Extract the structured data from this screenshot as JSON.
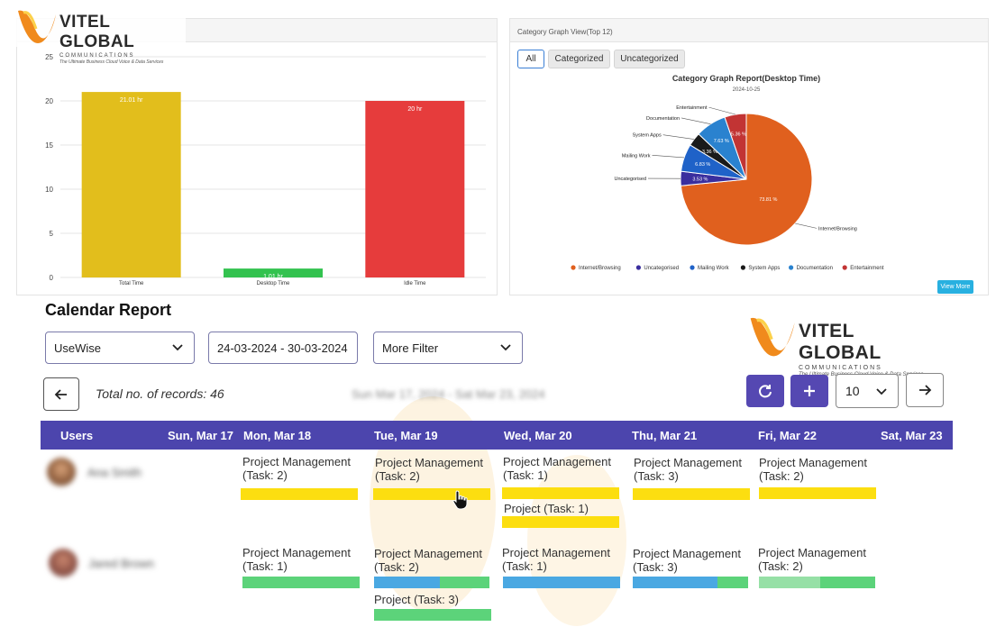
{
  "logo_top": {
    "word": "VITEL GLOBAL",
    "sub": "COMMUNICATIONS",
    "tagline": "The Ultimate Business Cloud Voice & Data Services"
  },
  "logo_right": {
    "word": "VITEL GLOBAL",
    "sub": "COMMUNICATIONS",
    "tagline": "The Ultimate Business Cloud Voice & Data Services"
  },
  "pie_panel": {
    "header": "Category Graph View(Top 12)",
    "tabs": [
      "All",
      "Categorized",
      "Uncategorized"
    ],
    "view_more": "View More"
  },
  "chart_data": [
    {
      "type": "bar",
      "categories": [
        "Total Time",
        "Desktop Time",
        "Idle Time"
      ],
      "values": [
        21.01,
        1.01,
        20
      ],
      "data_labels": [
        "21.01 hr",
        "1.01 hr",
        "20 hr"
      ],
      "colors": [
        "#e2be1c",
        "#33c24f",
        "#e63c3c"
      ],
      "yticks": [
        "0",
        "5",
        "10",
        "15",
        "20",
        "25"
      ],
      "ylim": [
        0,
        25
      ],
      "grid": true
    },
    {
      "type": "pie",
      "title": "Category Graph Report(Desktop Time)",
      "subtitle": "2024-10-25",
      "slices": [
        {
          "label": "Internet/Browsing",
          "value": 73.81,
          "pct_label": "73.81 %",
          "color": "#e0601e"
        },
        {
          "label": "Uncategorised",
          "value": 3.53,
          "pct_label": "3.53 %",
          "color": "#3a2e9e"
        },
        {
          "label": "Mailing Work",
          "value": 6.83,
          "pct_label": "6.83 %",
          "color": "#1f62c8"
        },
        {
          "label": "System Apps",
          "value": 3.36,
          "pct_label": "3.36 %",
          "color": "#1a1a1a"
        },
        {
          "label": "Documentation",
          "value": 7.63,
          "pct_label": "7.63 %",
          "color": "#2a82cf"
        },
        {
          "label": "Entertainment",
          "value": 5.36,
          "pct_label": "5.36 %",
          "color": "#c23434"
        }
      ],
      "legend_position": "bottom"
    }
  ],
  "report": {
    "title": "Calendar Report",
    "filter_type": "UseWise",
    "date_range": "24-03-2024 - 30-03-2024",
    "more_filter": "More Filter",
    "records_text": "Total no. of records: 46",
    "week_range": "Sun Mar 17, 2024 - Sat Mar 23, 2024",
    "page_size": "10"
  },
  "calendar": {
    "headers": [
      "Users",
      "Sun, Mar 17",
      "Mon, Mar 18",
      "Tue, Mar 19",
      "Wed, Mar 20",
      "Thu, Mar 21",
      "Fri, Mar 22",
      "Sat, Mar 23"
    ],
    "users": [
      {
        "name": "Ana Smith",
        "tasks": [
          {
            "title": "Project Management",
            "sub": "(Task: 2)"
          },
          {
            "title": "Project Management",
            "sub": "(Task: 2)"
          },
          {
            "title": "Project Management",
            "sub": "(Task: 1)"
          },
          {
            "title": "Project  (Task: 1)",
            "sub": ""
          },
          {
            "title": "Project Management",
            "sub": "(Task: 3)"
          },
          {
            "title": "Project Management",
            "sub": "(Task: 2)"
          }
        ]
      },
      {
        "name": "Jared Brown",
        "tasks": [
          {
            "title": "Project Management",
            "sub": "(Task: 1)"
          },
          {
            "title": "Project Management",
            "sub": "(Task: 2)"
          },
          {
            "title": "Project  (Task: 3)",
            "sub": ""
          },
          {
            "title": "Project Management",
            "sub": "(Task: 1)"
          },
          {
            "title": "Project Management",
            "sub": "(Task: 3)"
          },
          {
            "title": "Project Management",
            "sub": "(Task: 2)"
          }
        ]
      }
    ]
  },
  "colors": {
    "header_purple": "#4c45ad",
    "button_purple": "#5548b2"
  },
  "icons": [
    "arrow-left-icon",
    "refresh-icon",
    "plus-icon",
    "arrow-right-icon",
    "chevron-down-icon",
    "cursor-hand-icon"
  ]
}
